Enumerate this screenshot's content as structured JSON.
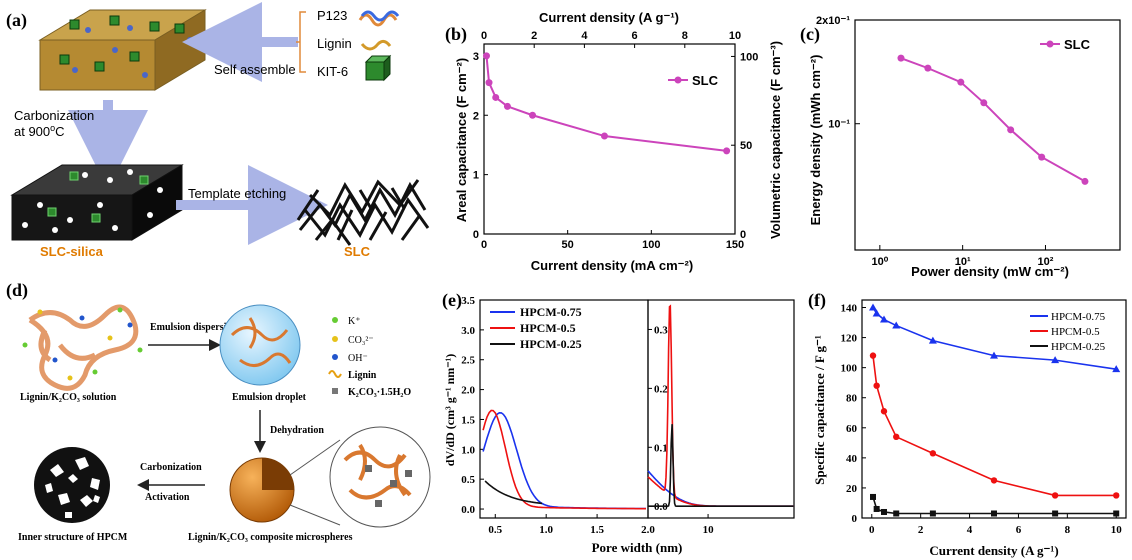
{
  "panel_a": {
    "letter": "(a)",
    "inputs": [
      "P123",
      "Lignin",
      "KIT-6"
    ],
    "self_assemble": "Self assemble",
    "carbonization_1": "Carbonization",
    "carbonization_2": "at 900",
    "carbonization_deg": "o",
    "carbonization_unit": "C",
    "template_etching": "Template etching",
    "slc_silica": "SLC-silica",
    "slc": "SLC"
  },
  "panel_d": {
    "letter": "(d)",
    "emulsion_dispersion": "Emulsion dispersion",
    "legend": [
      "K⁺",
      "CO₃²⁻",
      "OH⁻",
      "Lignin",
      "K₂CO₃·1.5H₂O"
    ],
    "lignin_solution": "Lignin/K₂CO₃ solution",
    "emulsion_droplet": "Emulsion droplet",
    "dehydration": "Dehydration",
    "carbonization": "Carbonization",
    "activation": "Activation",
    "inner_structure": "Inner structure of HPCM",
    "microspheres": "Lignin/K₂CO₃ composite microspheres"
  },
  "colors": {
    "magenta": "#cc44bb",
    "blue": "#1a33ee",
    "red": "#ee1111",
    "black": "#111111",
    "arrow": "#aab4e6",
    "orange_text": "#e07b00"
  },
  "chart_data": [
    {
      "id": "b",
      "letter": "(b)",
      "type": "line",
      "xlabel": "Current density (mA cm⁻²)",
      "ylabel": "Areal capacitance (F cm⁻²)",
      "top_xlabel": "Current density (A g⁻¹)",
      "right_ylabel": "Volumetric capacitance (F cm⁻³)",
      "xlim": [
        0,
        150
      ],
      "ylim": [
        0,
        3.2
      ],
      "xticks": [
        "0",
        "50",
        "100",
        "150"
      ],
      "yticks": [
        "0",
        "1",
        "2",
        "3"
      ],
      "top_ticks": [
        "0",
        "2",
        "4",
        "6",
        "8",
        "10"
      ],
      "right_ticks": [
        "0",
        "50",
        "100"
      ],
      "series": [
        {
          "name": "SLC",
          "x": [
            1.5,
            3,
            7,
            14,
            29,
            72,
            145
          ],
          "y": [
            3.0,
            2.55,
            2.3,
            2.15,
            2.0,
            1.65,
            1.4
          ]
        }
      ],
      "legend_position": "top-right"
    },
    {
      "id": "c",
      "letter": "(c)",
      "type": "line",
      "xlabel": "Power density (mW cm⁻²)",
      "ylabel": "Energy density (mWh cm⁻²)",
      "x_scale": "log",
      "y_scale": "log",
      "xticks": [
        "10⁰",
        "10¹",
        "10²"
      ],
      "yticks": [
        "10⁻¹",
        "2x10⁻¹"
      ],
      "series": [
        {
          "name": "SLC",
          "x": [
            1.8,
            3.8,
            9.5,
            18,
            38,
            90,
            300
          ],
          "y": [
            0.155,
            0.145,
            0.132,
            0.115,
            0.096,
            0.08,
            0.068
          ]
        }
      ],
      "legend_position": "top-right"
    },
    {
      "id": "e",
      "letter": "(e)",
      "type": "line",
      "xlabel": "Pore width (nm)",
      "ylabel": "dV/dD (cm³ g⁻¹ nm⁻¹)",
      "left_xticks": [
        "0.5",
        "1.0",
        "1.5",
        "2.0"
      ],
      "left_yticks": [
        "0.0",
        "0.5",
        "1.0",
        "1.5",
        "2.0",
        "2.5",
        "3.0",
        "3.5"
      ],
      "right_xticks": [
        "10"
      ],
      "right_yticks": [
        "0.0",
        "0.1",
        "0.2",
        "0.3"
      ],
      "series": [
        {
          "name": "HPCM-0.75",
          "color": "#1a33ee"
        },
        {
          "name": "HPCM-0.5",
          "color": "#ee1111"
        },
        {
          "name": "HPCM-0.25",
          "color": "#111111"
        }
      ],
      "legend_position": "top-left"
    },
    {
      "id": "f",
      "letter": "(f)",
      "type": "line",
      "xlabel": "Current density (A g⁻¹)",
      "ylabel": "Specific capacitance / F g⁻¹",
      "xlim": [
        0,
        10
      ],
      "ylim": [
        0,
        145
      ],
      "xticks": [
        "0",
        "2",
        "4",
        "6",
        "8",
        "10"
      ],
      "yticks": [
        "0",
        "20",
        "40",
        "60",
        "80",
        "100",
        "120",
        "140"
      ],
      "series": [
        {
          "name": "HPCM-0.75",
          "color": "#1a33ee",
          "x": [
            0.05,
            0.2,
            0.5,
            1,
            2.5,
            5,
            7.5,
            10
          ],
          "y": [
            140,
            136,
            132,
            128,
            118,
            108,
            105,
            99
          ]
        },
        {
          "name": "HPCM-0.5",
          "color": "#ee1111",
          "x": [
            0.05,
            0.2,
            0.5,
            1,
            2.5,
            5,
            7.5,
            10
          ],
          "y": [
            108,
            88,
            71,
            54,
            43,
            25,
            15,
            15
          ]
        },
        {
          "name": "HPCM-0.25",
          "color": "#111111",
          "x": [
            0.05,
            0.2,
            0.5,
            1,
            2.5,
            5,
            7.5,
            10
          ],
          "y": [
            14,
            6,
            4,
            3,
            3,
            3,
            3,
            3
          ]
        }
      ],
      "legend_position": "top-right"
    }
  ]
}
